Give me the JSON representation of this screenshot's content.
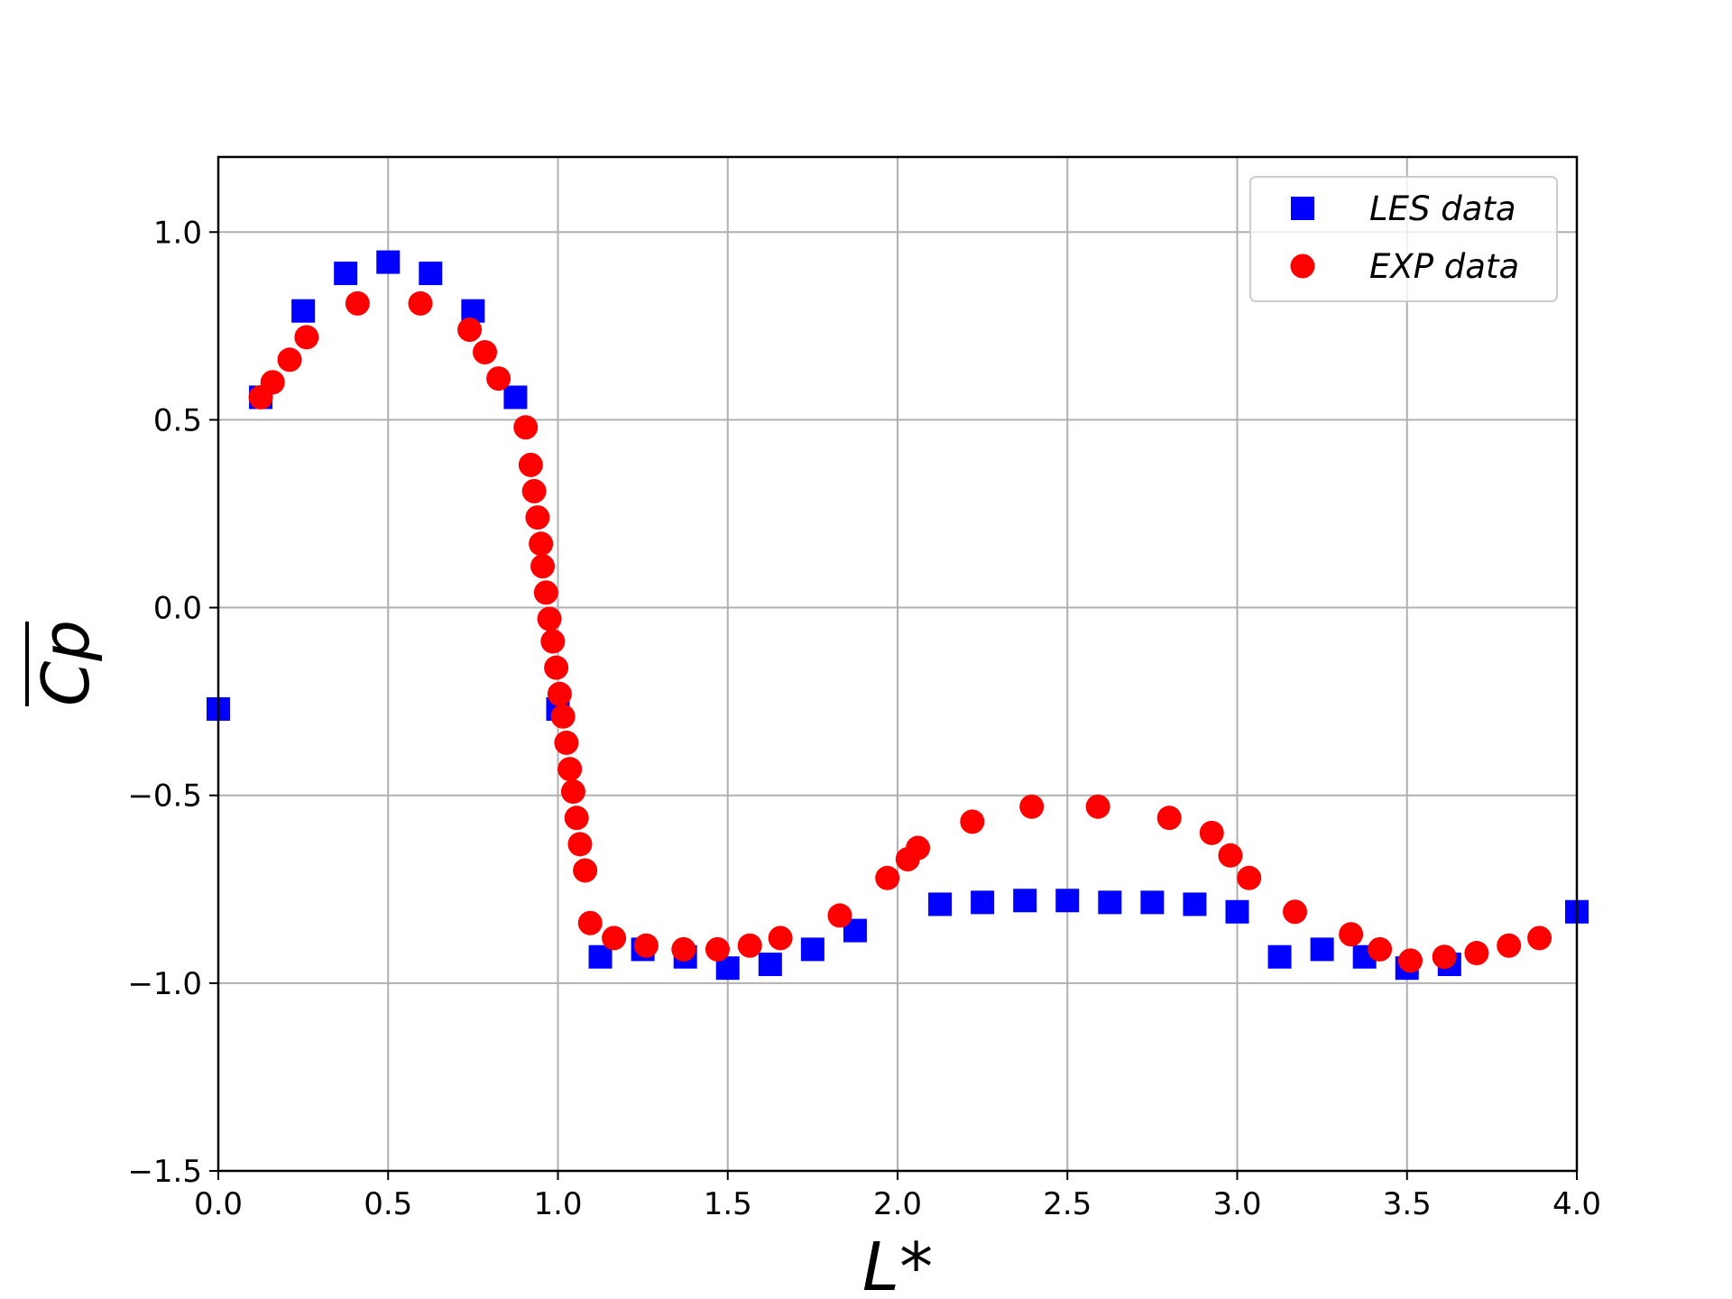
{
  "chart_data": {
    "type": "scatter",
    "xlabel": "L*",
    "ylabel": "Cp",
    "xlim": [
      0.0,
      4.0
    ],
    "ylim": [
      -1.5,
      1.2
    ],
    "x_ticks": [
      0.0,
      0.5,
      1.0,
      1.5,
      2.0,
      2.5,
      3.0,
      3.5,
      4.0
    ],
    "x_tick_labels": [
      "0.0",
      "0.5",
      "1.0",
      "1.5",
      "2.0",
      "2.5",
      "3.0",
      "3.5",
      "4.0"
    ],
    "y_ticks": [
      -1.5,
      -1.0,
      -0.5,
      0.0,
      0.5,
      1.0
    ],
    "y_tick_labels": [
      "−1.5",
      "−1.0",
      "−0.5",
      "0.0",
      "0.5",
      "1.0"
    ],
    "grid": true,
    "legend_position": "top-right",
    "series": [
      {
        "name": "LES data",
        "marker": "square",
        "color": "#0000ff",
        "points": [
          [
            0.0,
            -0.27
          ],
          [
            0.125,
            0.56
          ],
          [
            0.25,
            0.79
          ],
          [
            0.375,
            0.89
          ],
          [
            0.5,
            0.92
          ],
          [
            0.625,
            0.89
          ],
          [
            0.75,
            0.79
          ],
          [
            0.875,
            0.56
          ],
          [
            1.0,
            -0.27
          ],
          [
            1.125,
            -0.93
          ],
          [
            1.25,
            -0.91
          ],
          [
            1.375,
            -0.93
          ],
          [
            1.5,
            -0.96
          ],
          [
            1.625,
            -0.95
          ],
          [
            1.75,
            -0.91
          ],
          [
            1.875,
            -0.86
          ],
          [
            2.125,
            -0.79
          ],
          [
            2.25,
            -0.785
          ],
          [
            2.375,
            -0.78
          ],
          [
            2.5,
            -0.78
          ],
          [
            2.625,
            -0.785
          ],
          [
            2.75,
            -0.785
          ],
          [
            2.875,
            -0.79
          ],
          [
            3.0,
            -0.81
          ],
          [
            3.125,
            -0.93
          ],
          [
            3.25,
            -0.91
          ],
          [
            3.375,
            -0.93
          ],
          [
            3.5,
            -0.96
          ],
          [
            3.625,
            -0.95
          ],
          [
            4.0,
            -0.81
          ]
        ]
      },
      {
        "name": "EXP data",
        "marker": "circle",
        "color": "#ff0000",
        "points": [
          [
            0.125,
            0.56
          ],
          [
            0.16,
            0.6
          ],
          [
            0.21,
            0.66
          ],
          [
            0.26,
            0.72
          ],
          [
            0.41,
            0.81
          ],
          [
            0.595,
            0.81
          ],
          [
            0.74,
            0.74
          ],
          [
            0.785,
            0.68
          ],
          [
            0.825,
            0.61
          ],
          [
            0.905,
            0.48
          ],
          [
            0.92,
            0.38
          ],
          [
            0.93,
            0.31
          ],
          [
            0.94,
            0.24
          ],
          [
            0.95,
            0.17
          ],
          [
            0.955,
            0.11
          ],
          [
            0.965,
            0.04
          ],
          [
            0.975,
            -0.03
          ],
          [
            0.985,
            -0.09
          ],
          [
            0.995,
            -0.16
          ],
          [
            1.005,
            -0.23
          ],
          [
            1.015,
            -0.29
          ],
          [
            1.025,
            -0.36
          ],
          [
            1.035,
            -0.43
          ],
          [
            1.045,
            -0.49
          ],
          [
            1.055,
            -0.56
          ],
          [
            1.065,
            -0.63
          ],
          [
            1.08,
            -0.7
          ],
          [
            1.095,
            -0.84
          ],
          [
            1.165,
            -0.88
          ],
          [
            1.26,
            -0.9
          ],
          [
            1.37,
            -0.91
          ],
          [
            1.47,
            -0.91
          ],
          [
            1.565,
            -0.9
          ],
          [
            1.655,
            -0.88
          ],
          [
            1.83,
            -0.82
          ],
          [
            1.97,
            -0.72
          ],
          [
            2.03,
            -0.67
          ],
          [
            2.06,
            -0.64
          ],
          [
            2.22,
            -0.57
          ],
          [
            2.395,
            -0.53
          ],
          [
            2.59,
            -0.53
          ],
          [
            2.8,
            -0.56
          ],
          [
            2.925,
            -0.6
          ],
          [
            2.98,
            -0.66
          ],
          [
            3.035,
            -0.72
          ],
          [
            3.17,
            -0.81
          ],
          [
            3.335,
            -0.87
          ],
          [
            3.42,
            -0.91
          ],
          [
            3.51,
            -0.94
          ],
          [
            3.61,
            -0.93
          ],
          [
            3.705,
            -0.92
          ],
          [
            3.8,
            -0.9
          ],
          [
            3.89,
            -0.88
          ]
        ]
      }
    ]
  }
}
